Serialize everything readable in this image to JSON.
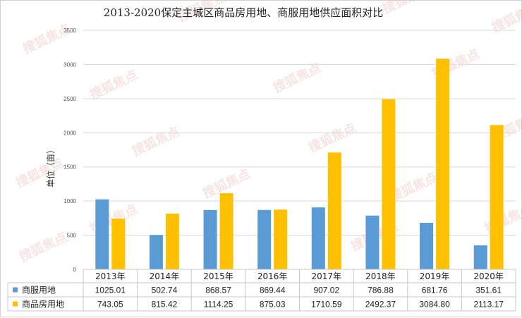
{
  "chart_data": {
    "type": "bar",
    "title": "2013-2020保定主城区商品房用地、商服用地供应面积对比",
    "ylabel": "单位（亩）",
    "ylim": [
      0,
      3500
    ],
    "yticks": [
      0,
      500,
      1000,
      1500,
      2000,
      2500,
      3000,
      3500
    ],
    "categories": [
      "2013年",
      "2014年",
      "2015年",
      "2016年",
      "2017年",
      "2018年",
      "2019年",
      "2020年"
    ],
    "series": [
      {
        "name": "商服用地",
        "color": "#5b9bd5",
        "values": [
          1025.01,
          502.74,
          868.57,
          869.44,
          907.02,
          786.88,
          681.76,
          351.61
        ],
        "labels": [
          "1025.01",
          "502.74",
          "868.57",
          "869.44",
          "907.02",
          "786.88",
          "681.76",
          "351.61"
        ]
      },
      {
        "name": "商品房用地",
        "color": "#ffc000",
        "values": [
          743.05,
          815.42,
          1114.25,
          875.03,
          1710.59,
          2492.37,
          3084.8,
          2113.17
        ],
        "labels": [
          "743.05",
          "815.42",
          "1114.25",
          "875.03",
          "1710.59",
          "2492.37",
          "3084.80",
          "2113.17"
        ]
      }
    ],
    "grid": true,
    "legend": "data-table"
  },
  "watermark": {
    "text": "搜狐焦点",
    "color": "#c0392b"
  }
}
